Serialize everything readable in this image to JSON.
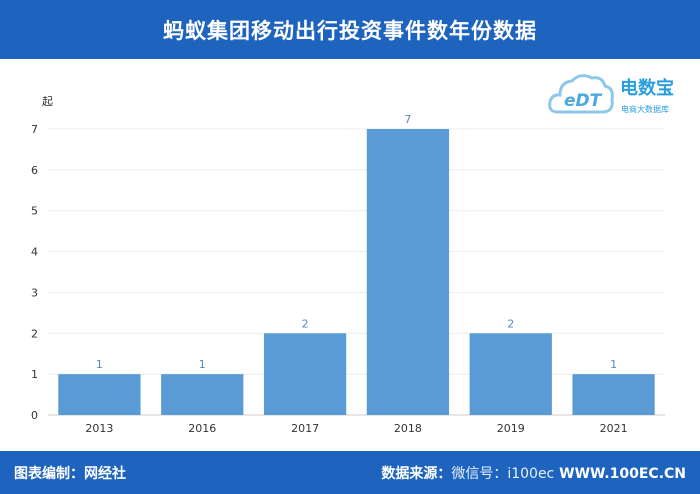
{
  "header": {
    "title": "蚂蚁集团移动出行投资事件数年份数据"
  },
  "logo": {
    "mark": "eDT",
    "name": "电数宝",
    "tagline": "电商大数据库"
  },
  "footer": {
    "left_label": "图表编制：网经社",
    "source_label": "数据来源：",
    "watermark": "微信号：i100ec",
    "site": "WWW.100EC.CN"
  },
  "colors": {
    "header": "#1e64be",
    "bar": "#5b9bd5",
    "label": "#5b87c8"
  },
  "chart_data": {
    "type": "bar",
    "categories": [
      "2013",
      "2016",
      "2017",
      "2018",
      "2019",
      "2021"
    ],
    "values": [
      1,
      1,
      2,
      7,
      2,
      1
    ],
    "title": "蚂蚁集团移动出行投资事件数年份数据",
    "xlabel": "",
    "ylabel": "起",
    "ylim": [
      0,
      7
    ],
    "yticks": [
      0,
      1,
      2,
      3,
      4,
      5,
      6,
      7
    ],
    "grid": true,
    "data_labels": true
  }
}
